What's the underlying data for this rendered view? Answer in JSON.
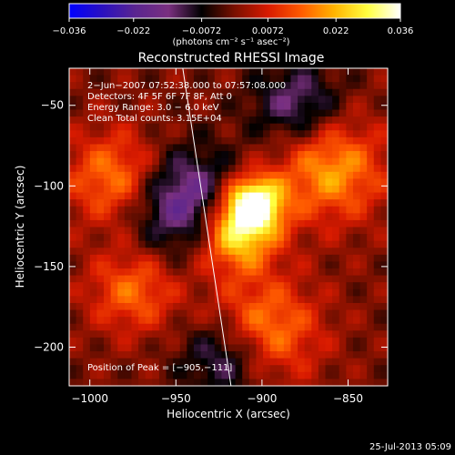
{
  "colors": {
    "background": "#000000",
    "foreground": "#ffffff",
    "colormap": [
      "#0000ff",
      "#2a10c0",
      "#5a2590",
      "#7a3080",
      "#000000",
      "#7a1000",
      "#d81a00",
      "#ff5a00",
      "#ffb400",
      "#ffff40",
      "#ffffff"
    ]
  },
  "chart_data": {
    "type": "heatmap",
    "title": "Reconstructed RHESSI Image",
    "xlabel": "Heliocentric X (arcsec)",
    "ylabel": "Heliocentric Y (arcsec)",
    "xlim": [
      -1012,
      -827
    ],
    "ylim": [
      -224,
      -27
    ],
    "xticks": [
      -1000,
      -950,
      -900,
      -850
    ],
    "yticks": [
      -200,
      -150,
      -100,
      -50
    ],
    "xtick_labels": [
      "−1000",
      "−950",
      "−900",
      "−850"
    ],
    "ytick_labels": [
      "−200",
      "−150",
      "−100",
      "−50"
    ],
    "colorbar": {
      "min": -0.036,
      "max": 0.036,
      "ticks": [
        -0.036,
        -0.022,
        -0.0072,
        0.0072,
        0.022,
        0.036
      ],
      "tick_labels": [
        "−0.036",
        "−0.022",
        "−0.0072",
        "0.0072",
        "0.022",
        "0.036"
      ],
      "units": "(photons cm⁻² s⁻¹ asec⁻²)"
    },
    "annotations": [
      "2−Jun−2007 07:52:38.000 to 07:57:08.000",
      "Detectors: 4F 5F 6F 7F 8F, Att 0",
      "Energy Range: 3.0 − 6.0 keV",
      "Clean     Total counts: 3.15E+04"
    ],
    "peak_label": "Position of Peak = [−905,−111]",
    "peak": [
      -905,
      -111
    ],
    "limb_line": [
      [
        -946,
        -27
      ],
      [
        -918,
        -224
      ]
    ],
    "features": [
      {
        "name": "peak-source",
        "x": -905,
        "y": -111,
        "value": 0.036
      },
      {
        "name": "secondary-source",
        "x": -915,
        "y": -130,
        "value": 0.028
      },
      {
        "name": "outer-arc",
        "x": -860,
        "y": -90,
        "value": 0.02
      },
      {
        "name": "lower-arc",
        "x": -900,
        "y": -190,
        "value": 0.02
      },
      {
        "name": "left-ridge",
        "x": -985,
        "y": -95,
        "value": 0.018
      },
      {
        "name": "lower-left-ridge",
        "x": -975,
        "y": -165,
        "value": 0.015
      },
      {
        "name": "negative-crescent",
        "x": -945,
        "y": -110,
        "value": -0.022
      },
      {
        "name": "negative-lower",
        "x": -920,
        "y": -205,
        "value": -0.018
      },
      {
        "name": "negative-upper",
        "x": -880,
        "y": -50,
        "value": -0.015
      }
    ]
  },
  "footer": {
    "timestamp": "25-Jul-2013 05:09"
  }
}
